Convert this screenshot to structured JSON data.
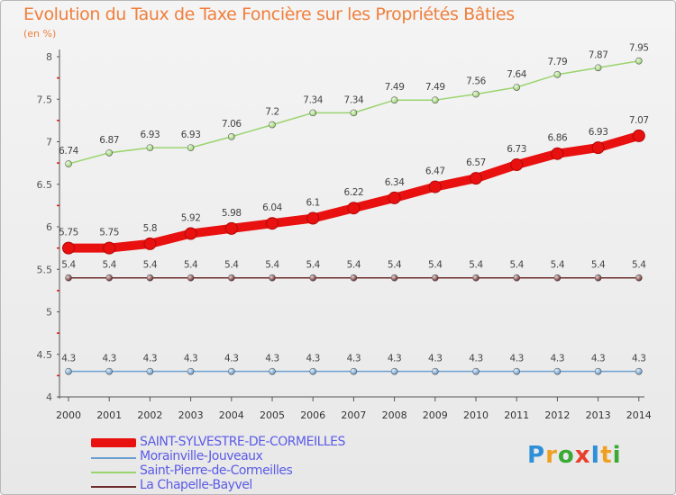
{
  "title": "Evolution du Taux de Taxe Foncière sur les Propriétés Bâties",
  "subtitle": "(en %)",
  "logo": {
    "text": "ProxIti",
    "colors": [
      "#2f8fd8",
      "#f0a020",
      "#3aaa35",
      "#e8402a",
      "#2f8fd8",
      "#f0a020",
      "#3aaa35"
    ]
  },
  "chart_data": {
    "type": "line",
    "title": "Evolution du Taux de Taxe Foncière sur les Propriétés Bâties",
    "ylabel": "(en %)",
    "xlabel": "",
    "ylim": [
      4,
      8
    ],
    "yticks": [
      "4",
      "4.5",
      "5",
      "5.5",
      "6",
      "6.5",
      "7",
      "7.5",
      "8"
    ],
    "x": [
      "2000",
      "2001",
      "2002",
      "2003",
      "2004",
      "2005",
      "2006",
      "2007",
      "2008",
      "2009",
      "2010",
      "2011",
      "2012",
      "2013",
      "2014"
    ],
    "grid": false,
    "legend_position": "bottom-left",
    "series": [
      {
        "name": "SAINT-SYLVESTRE-DE-CORMEILLES",
        "color": "#e8110f",
        "values": [
          5.75,
          5.75,
          5.8,
          5.92,
          5.98,
          6.04,
          6.1,
          6.22,
          6.34,
          6.47,
          6.57,
          6.73,
          6.86,
          6.93,
          7.07
        ],
        "labels": [
          "5.75",
          "5.75",
          "5.8",
          "5.92",
          "5.98",
          "6.04",
          "6.1",
          "6.22",
          "6.34",
          "6.47",
          "6.57",
          "6.73",
          "6.86",
          "6.93",
          "7.07"
        ]
      },
      {
        "name": "Morainville-Jouveaux",
        "color": "#6b9fd0",
        "values": [
          4.3,
          4.3,
          4.3,
          4.3,
          4.3,
          4.3,
          4.3,
          4.3,
          4.3,
          4.3,
          4.3,
          4.3,
          4.3,
          4.3,
          4.3
        ],
        "labels": [
          "4.3",
          "4.3",
          "4.3",
          "4.3",
          "4.3",
          "4.3",
          "4.3",
          "4.3",
          "4.3",
          "4.3",
          "4.3",
          "4.3",
          "4.3",
          "4.3",
          "4.3"
        ]
      },
      {
        "name": "Saint-Pierre-de-Cormeilles",
        "color": "#9ad46e",
        "values": [
          6.74,
          6.87,
          6.93,
          6.93,
          7.06,
          7.2,
          7.34,
          7.34,
          7.49,
          7.49,
          7.56,
          7.64,
          7.79,
          7.87,
          7.95
        ],
        "labels": [
          "6.74",
          "6.87",
          "6.93",
          "6.93",
          "7.06",
          "7.2",
          "7.34",
          "7.34",
          "7.49",
          "7.49",
          "7.56",
          "7.64",
          "7.79",
          "7.87",
          "7.95"
        ]
      },
      {
        "name": "La Chapelle-Bayvel",
        "color": "#6e2d2d",
        "values": [
          5.4,
          5.4,
          5.4,
          5.4,
          5.4,
          5.4,
          5.4,
          5.4,
          5.4,
          5.4,
          5.4,
          5.4,
          5.4,
          5.4,
          5.4
        ],
        "labels": [
          "5.4",
          "5.4",
          "5.4",
          "5.4",
          "5.4",
          "5.4",
          "5.4",
          "5.4",
          "5.4",
          "5.4",
          "5.4",
          "5.4",
          "5.4",
          "5.4",
          "5.4"
        ]
      }
    ]
  }
}
